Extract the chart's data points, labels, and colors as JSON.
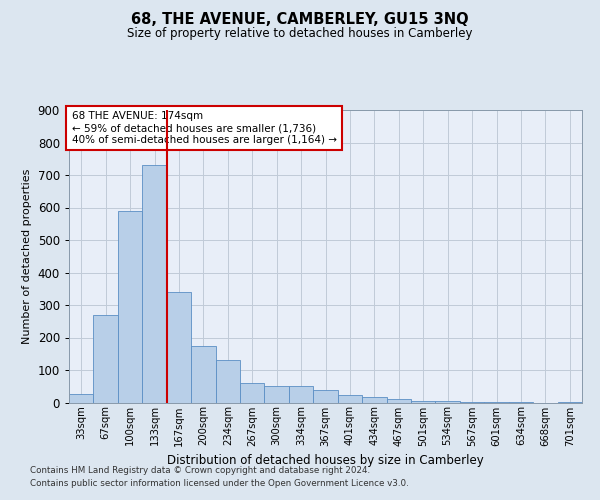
{
  "title_line1": "68, THE AVENUE, CAMBERLEY, GU15 3NQ",
  "title_line2": "Size of property relative to detached houses in Camberley",
  "xlabel": "Distribution of detached houses by size in Camberley",
  "ylabel": "Number of detached properties",
  "footnote1": "Contains HM Land Registry data © Crown copyright and database right 2024.",
  "footnote2": "Contains public sector information licensed under the Open Government Licence v3.0.",
  "annotation_line1": "68 THE AVENUE: 174sqm",
  "annotation_line2": "← 59% of detached houses are smaller (1,736)",
  "annotation_line3": "40% of semi-detached houses are larger (1,164) →",
  "bar_color": "#b8cfe8",
  "bar_edge_color": "#5b8ec4",
  "vline_color": "#cc0000",
  "vline_x": 3.5,
  "categories": [
    "33sqm",
    "67sqm",
    "100sqm",
    "133sqm",
    "167sqm",
    "200sqm",
    "234sqm",
    "267sqm",
    "300sqm",
    "334sqm",
    "367sqm",
    "401sqm",
    "434sqm",
    "467sqm",
    "501sqm",
    "534sqm",
    "567sqm",
    "601sqm",
    "634sqm",
    "668sqm",
    "701sqm"
  ],
  "values": [
    27,
    270,
    590,
    730,
    340,
    175,
    130,
    60,
    50,
    50,
    40,
    22,
    18,
    12,
    5,
    5,
    3,
    2,
    1,
    0,
    1
  ],
  "ylim": [
    0,
    900
  ],
  "yticks": [
    0,
    100,
    200,
    300,
    400,
    500,
    600,
    700,
    800,
    900
  ],
  "bg_color": "#dce6f0",
  "plot_bg_color": "#e8eef8",
  "grid_color": "#c0cad8"
}
